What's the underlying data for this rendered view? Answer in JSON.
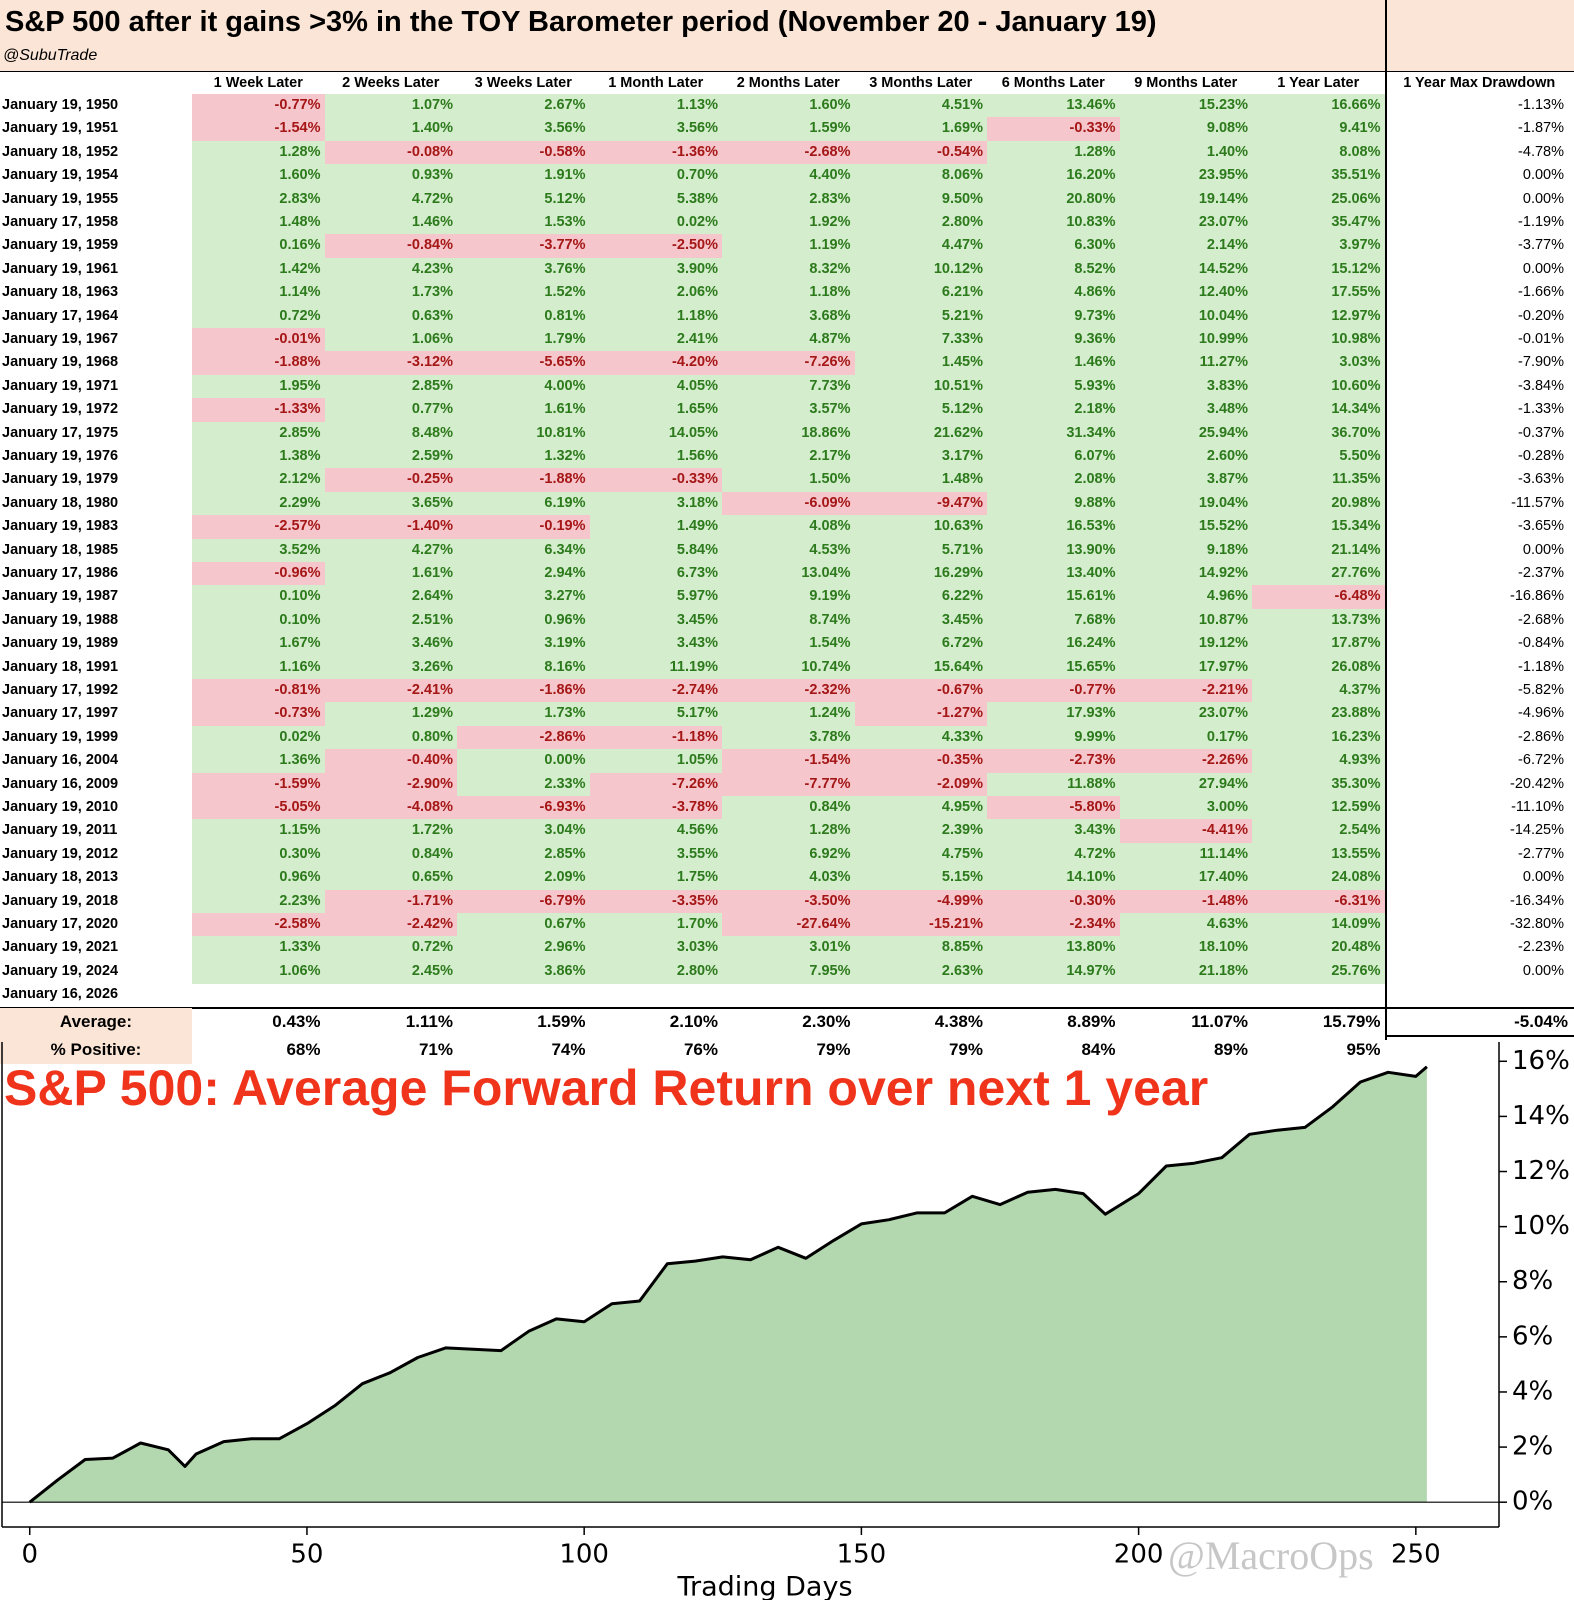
{
  "table": {
    "title": "S&P 500 after it gains >3% in the TOY Barometer period (November 20 - January 19)",
    "handle": "@SubuTrade",
    "columns": [
      "1 Week Later",
      "2 Weeks Later",
      "3 Weeks Later",
      "1 Month Later",
      "2 Months Later",
      "3 Months Later",
      "6 Months Later",
      "9 Months Later",
      "1 Year Later",
      "1 Year Max Drawdown"
    ],
    "rows": [
      [
        "January 19, 1950",
        "-0.77%",
        "1.07%",
        "2.67%",
        "1.13%",
        "1.60%",
        "4.51%",
        "13.46%",
        "15.23%",
        "16.66%",
        "-1.13%"
      ],
      [
        "January 19, 1951",
        "-1.54%",
        "1.40%",
        "3.56%",
        "3.56%",
        "1.59%",
        "1.69%",
        "-0.33%",
        "9.08%",
        "9.41%",
        "-1.87%"
      ],
      [
        "January 18, 1952",
        "1.28%",
        "-0.08%",
        "-0.58%",
        "-1.36%",
        "-2.68%",
        "-0.54%",
        "1.28%",
        "1.40%",
        "8.08%",
        "-4.78%"
      ],
      [
        "January 19, 1954",
        "1.60%",
        "0.93%",
        "1.91%",
        "0.70%",
        "4.40%",
        "8.06%",
        "16.20%",
        "23.95%",
        "35.51%",
        "0.00%"
      ],
      [
        "January 19, 1955",
        "2.83%",
        "4.72%",
        "5.12%",
        "5.38%",
        "2.83%",
        "9.50%",
        "20.80%",
        "19.14%",
        "25.06%",
        "0.00%"
      ],
      [
        "January 17, 1958",
        "1.48%",
        "1.46%",
        "1.53%",
        "0.02%",
        "1.92%",
        "2.80%",
        "10.83%",
        "23.07%",
        "35.47%",
        "-1.19%"
      ],
      [
        "January 19, 1959",
        "0.16%",
        "-0.84%",
        "-3.77%",
        "-2.50%",
        "1.19%",
        "4.47%",
        "6.30%",
        "2.14%",
        "3.97%",
        "-3.77%"
      ],
      [
        "January 19, 1961",
        "1.42%",
        "4.23%",
        "3.76%",
        "3.90%",
        "8.32%",
        "10.12%",
        "8.52%",
        "14.52%",
        "15.12%",
        "0.00%"
      ],
      [
        "January 18, 1963",
        "1.14%",
        "1.73%",
        "1.52%",
        "2.06%",
        "1.18%",
        "6.21%",
        "4.86%",
        "12.40%",
        "17.55%",
        "-1.66%"
      ],
      [
        "January 17, 1964",
        "0.72%",
        "0.63%",
        "0.81%",
        "1.18%",
        "3.68%",
        "5.21%",
        "9.73%",
        "10.04%",
        "12.97%",
        "-0.20%"
      ],
      [
        "January 19, 1967",
        "-0.01%",
        "1.06%",
        "1.79%",
        "2.41%",
        "4.87%",
        "7.33%",
        "9.36%",
        "10.99%",
        "10.98%",
        "-0.01%"
      ],
      [
        "January 19, 1968",
        "-1.88%",
        "-3.12%",
        "-5.65%",
        "-4.20%",
        "-7.26%",
        "1.45%",
        "1.46%",
        "11.27%",
        "3.03%",
        "-7.90%"
      ],
      [
        "January 19, 1971",
        "1.95%",
        "2.85%",
        "4.00%",
        "4.05%",
        "7.73%",
        "10.51%",
        "5.93%",
        "3.83%",
        "10.60%",
        "-3.84%"
      ],
      [
        "January 19, 1972",
        "-1.33%",
        "0.77%",
        "1.61%",
        "1.65%",
        "3.57%",
        "5.12%",
        "2.18%",
        "3.48%",
        "14.34%",
        "-1.33%"
      ],
      [
        "January 17, 1975",
        "2.85%",
        "8.48%",
        "10.81%",
        "14.05%",
        "18.86%",
        "21.62%",
        "31.34%",
        "25.94%",
        "36.70%",
        "-0.37%"
      ],
      [
        "January 19, 1976",
        "1.38%",
        "2.59%",
        "1.32%",
        "1.56%",
        "2.17%",
        "3.17%",
        "6.07%",
        "2.60%",
        "5.50%",
        "-0.28%"
      ],
      [
        "January 19, 1979",
        "2.12%",
        "-0.25%",
        "-1.88%",
        "-0.33%",
        "1.50%",
        "1.48%",
        "2.08%",
        "3.87%",
        "11.35%",
        "-3.63%"
      ],
      [
        "January 18, 1980",
        "2.29%",
        "3.65%",
        "6.19%",
        "3.18%",
        "-6.09%",
        "-9.47%",
        "9.88%",
        "19.04%",
        "20.98%",
        "-11.57%"
      ],
      [
        "January 19, 1983",
        "-2.57%",
        "-1.40%",
        "-0.19%",
        "1.49%",
        "4.08%",
        "10.63%",
        "16.53%",
        "15.52%",
        "15.34%",
        "-3.65%"
      ],
      [
        "January 18, 1985",
        "3.52%",
        "4.27%",
        "6.34%",
        "5.84%",
        "4.53%",
        "5.71%",
        "13.90%",
        "9.18%",
        "21.14%",
        "0.00%"
      ],
      [
        "January 17, 1986",
        "-0.96%",
        "1.61%",
        "2.94%",
        "6.73%",
        "13.04%",
        "16.29%",
        "13.40%",
        "14.92%",
        "27.76%",
        "-2.37%"
      ],
      [
        "January 19, 1987",
        "0.10%",
        "2.64%",
        "3.27%",
        "5.97%",
        "9.19%",
        "6.22%",
        "15.61%",
        "4.96%",
        "-6.48%",
        "-16.86%"
      ],
      [
        "January 19, 1988",
        "0.10%",
        "2.51%",
        "0.96%",
        "3.45%",
        "8.74%",
        "3.45%",
        "7.68%",
        "10.87%",
        "13.73%",
        "-2.68%"
      ],
      [
        "January 19, 1989",
        "1.67%",
        "3.46%",
        "3.19%",
        "3.43%",
        "1.54%",
        "6.72%",
        "16.24%",
        "19.12%",
        "17.87%",
        "-0.84%"
      ],
      [
        "January 18, 1991",
        "1.16%",
        "3.26%",
        "8.16%",
        "11.19%",
        "10.74%",
        "15.64%",
        "15.65%",
        "17.97%",
        "26.08%",
        "-1.18%"
      ],
      [
        "January 17, 1992",
        "-0.81%",
        "-2.41%",
        "-1.86%",
        "-2.74%",
        "-2.32%",
        "-0.67%",
        "-0.77%",
        "-2.21%",
        "4.37%",
        "-5.82%"
      ],
      [
        "January 17, 1997",
        "-0.73%",
        "1.29%",
        "1.73%",
        "5.17%",
        "1.24%",
        "-1.27%",
        "17.93%",
        "23.07%",
        "23.88%",
        "-4.96%"
      ],
      [
        "January 19, 1999",
        "0.02%",
        "0.80%",
        "-2.86%",
        "-1.18%",
        "3.78%",
        "4.33%",
        "9.99%",
        "0.17%",
        "16.23%",
        "-2.86%"
      ],
      [
        "January 16, 2004",
        "1.36%",
        "-0.40%",
        "0.00%",
        "1.05%",
        "-1.54%",
        "-0.35%",
        "-2.73%",
        "-2.26%",
        "4.93%",
        "-6.72%"
      ],
      [
        "January 16, 2009",
        "-1.59%",
        "-2.90%",
        "2.33%",
        "-7.26%",
        "-7.77%",
        "-2.09%",
        "11.88%",
        "27.94%",
        "35.30%",
        "-20.42%"
      ],
      [
        "January 19, 2010",
        "-5.05%",
        "-4.08%",
        "-6.93%",
        "-3.78%",
        "0.84%",
        "4.95%",
        "-5.80%",
        "3.00%",
        "12.59%",
        "-11.10%"
      ],
      [
        "January 19, 2011",
        "1.15%",
        "1.72%",
        "3.04%",
        "4.56%",
        "1.28%",
        "2.39%",
        "3.43%",
        "-4.41%",
        "2.54%",
        "-14.25%"
      ],
      [
        "January 19, 2012",
        "0.30%",
        "0.84%",
        "2.85%",
        "3.55%",
        "6.92%",
        "4.75%",
        "4.72%",
        "11.14%",
        "13.55%",
        "-2.77%"
      ],
      [
        "January 18, 2013",
        "0.96%",
        "0.65%",
        "2.09%",
        "1.75%",
        "4.03%",
        "5.15%",
        "14.10%",
        "17.40%",
        "24.08%",
        "0.00%"
      ],
      [
        "January 19, 2018",
        "2.23%",
        "-1.71%",
        "-6.79%",
        "-3.35%",
        "-3.50%",
        "-4.99%",
        "-0.30%",
        "-1.48%",
        "-6.31%",
        "-16.34%"
      ],
      [
        "January 17, 2020",
        "-2.58%",
        "-2.42%",
        "0.67%",
        "1.70%",
        "-27.64%",
        "-15.21%",
        "-2.34%",
        "4.63%",
        "14.09%",
        "-32.80%"
      ],
      [
        "January 19, 2021",
        "1.33%",
        "0.72%",
        "2.96%",
        "3.03%",
        "3.01%",
        "8.85%",
        "13.80%",
        "18.10%",
        "20.48%",
        "-2.23%"
      ],
      [
        "January 19, 2024",
        "1.06%",
        "2.45%",
        "3.86%",
        "2.80%",
        "7.95%",
        "2.63%",
        "14.97%",
        "21.18%",
        "25.76%",
        "0.00%"
      ],
      [
        "January 16, 2026"
      ]
    ],
    "summary": [
      [
        "Average:",
        "0.43%",
        "1.11%",
        "1.59%",
        "2.10%",
        "2.30%",
        "4.38%",
        "8.89%",
        "11.07%",
        "15.79%",
        "-5.04%"
      ],
      [
        "% Positive:",
        "68%",
        "71%",
        "74%",
        "76%",
        "79%",
        "79%",
        "84%",
        "89%",
        "95%"
      ]
    ]
  },
  "chart_data": {
    "type": "area",
    "title": "S&P 500: Average Forward Return over next 1 year",
    "x_label": "Trading Days",
    "watermark": "@MacroOps",
    "color": "#b3d7ae",
    "line_color": "#000000",
    "x": [
      0,
      5,
      10,
      15,
      20,
      25,
      28,
      30,
      35,
      40,
      45,
      50,
      55,
      60,
      65,
      70,
      75,
      80,
      85,
      90,
      95,
      100,
      105,
      110,
      115,
      120,
      125,
      130,
      135,
      140,
      145,
      150,
      155,
      160,
      165,
      170,
      175,
      180,
      185,
      190,
      194,
      200,
      205,
      210,
      215,
      220,
      225,
      230,
      235,
      240,
      245,
      250,
      252
    ],
    "values": [
      0,
      0.8,
      1.55,
      1.6,
      2.15,
      1.9,
      1.3,
      1.75,
      2.2,
      2.3,
      2.3,
      2.85,
      3.5,
      4.3,
      4.7,
      5.25,
      5.6,
      5.55,
      5.5,
      6.2,
      6.65,
      6.55,
      7.2,
      7.3,
      8.65,
      8.75,
      8.9,
      8.8,
      9.25,
      8.85,
      9.5,
      10.1,
      10.25,
      10.5,
      10.5,
      11.1,
      10.8,
      11.25,
      11.35,
      11.2,
      10.45,
      11.2,
      12.2,
      12.3,
      12.5,
      13.35,
      13.5,
      13.6,
      14.35,
      15.25,
      15.6,
      15.45,
      15.8
    ],
    "xlim": [
      -5,
      265
    ],
    "ylim": [
      -0.9,
      16.7
    ],
    "xticks": [
      0,
      50,
      100,
      150,
      200,
      250
    ],
    "yticks": [
      {
        "value": 0,
        "label": "0%"
      },
      {
        "value": 2,
        "label": "2%"
      },
      {
        "value": 4,
        "label": "4%"
      },
      {
        "value": 6,
        "label": "6%"
      },
      {
        "value": 8,
        "label": "8%"
      },
      {
        "value": 10,
        "label": "10%"
      },
      {
        "value": 12,
        "label": "12%"
      },
      {
        "value": 14,
        "label": "14%"
      },
      {
        "value": 16,
        "label": "16%"
      }
    ],
    "y_axis_side": "right"
  }
}
